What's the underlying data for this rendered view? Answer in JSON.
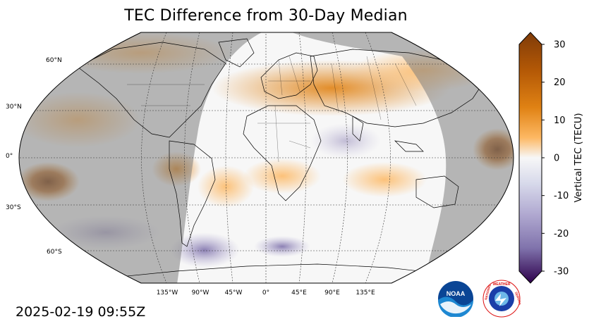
{
  "title": "TEC Difference from 30-Day Median",
  "timestamp": "2025-02-19 09:55Z",
  "colorbar": {
    "label": "Vertical TEC (TECU)",
    "ticks": [
      "30",
      "20",
      "10",
      "0",
      "-10",
      "-20",
      "-30"
    ],
    "tick_values": [
      30,
      20,
      10,
      0,
      -10,
      -20,
      -30
    ],
    "min": -30,
    "max": 30
  },
  "lat_labels": [
    "60°N",
    "30°N",
    "0°",
    "30°S",
    "60°S"
  ],
  "lon_labels": [
    "135°W",
    "90°W",
    "45°W",
    "0°",
    "45°E",
    "90°E",
    "135°E"
  ],
  "logos": {
    "noaa": "NOAA",
    "nws": "NATIONAL WEATHER SERVICE"
  },
  "colors": {
    "positive": "#b35806",
    "negative": "#542788",
    "neutral": "#f7f7f7",
    "night_overlay": "#808080"
  }
}
